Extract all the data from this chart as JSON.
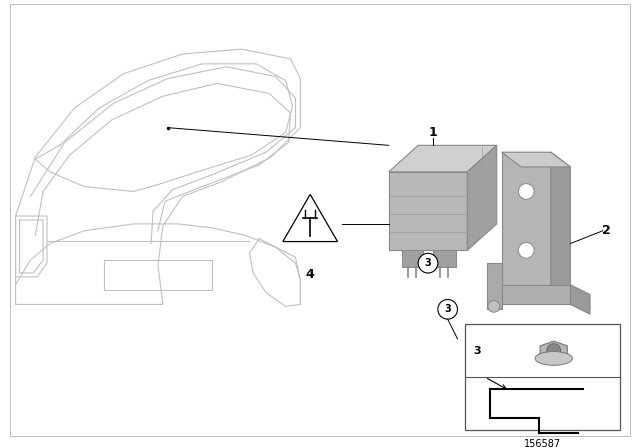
{
  "background_color": "#ffffff",
  "border_color": "#cccccc",
  "fig_width": 6.4,
  "fig_height": 4.48,
  "dpi": 100,
  "diagram_id": "156587",
  "car_line_color": "#c0c0c0",
  "part_face_color": "#b8b8b8",
  "part_edge_color": "#888888",
  "line_color": "#000000",
  "label_fontsize": 8,
  "id_fontsize": 7
}
